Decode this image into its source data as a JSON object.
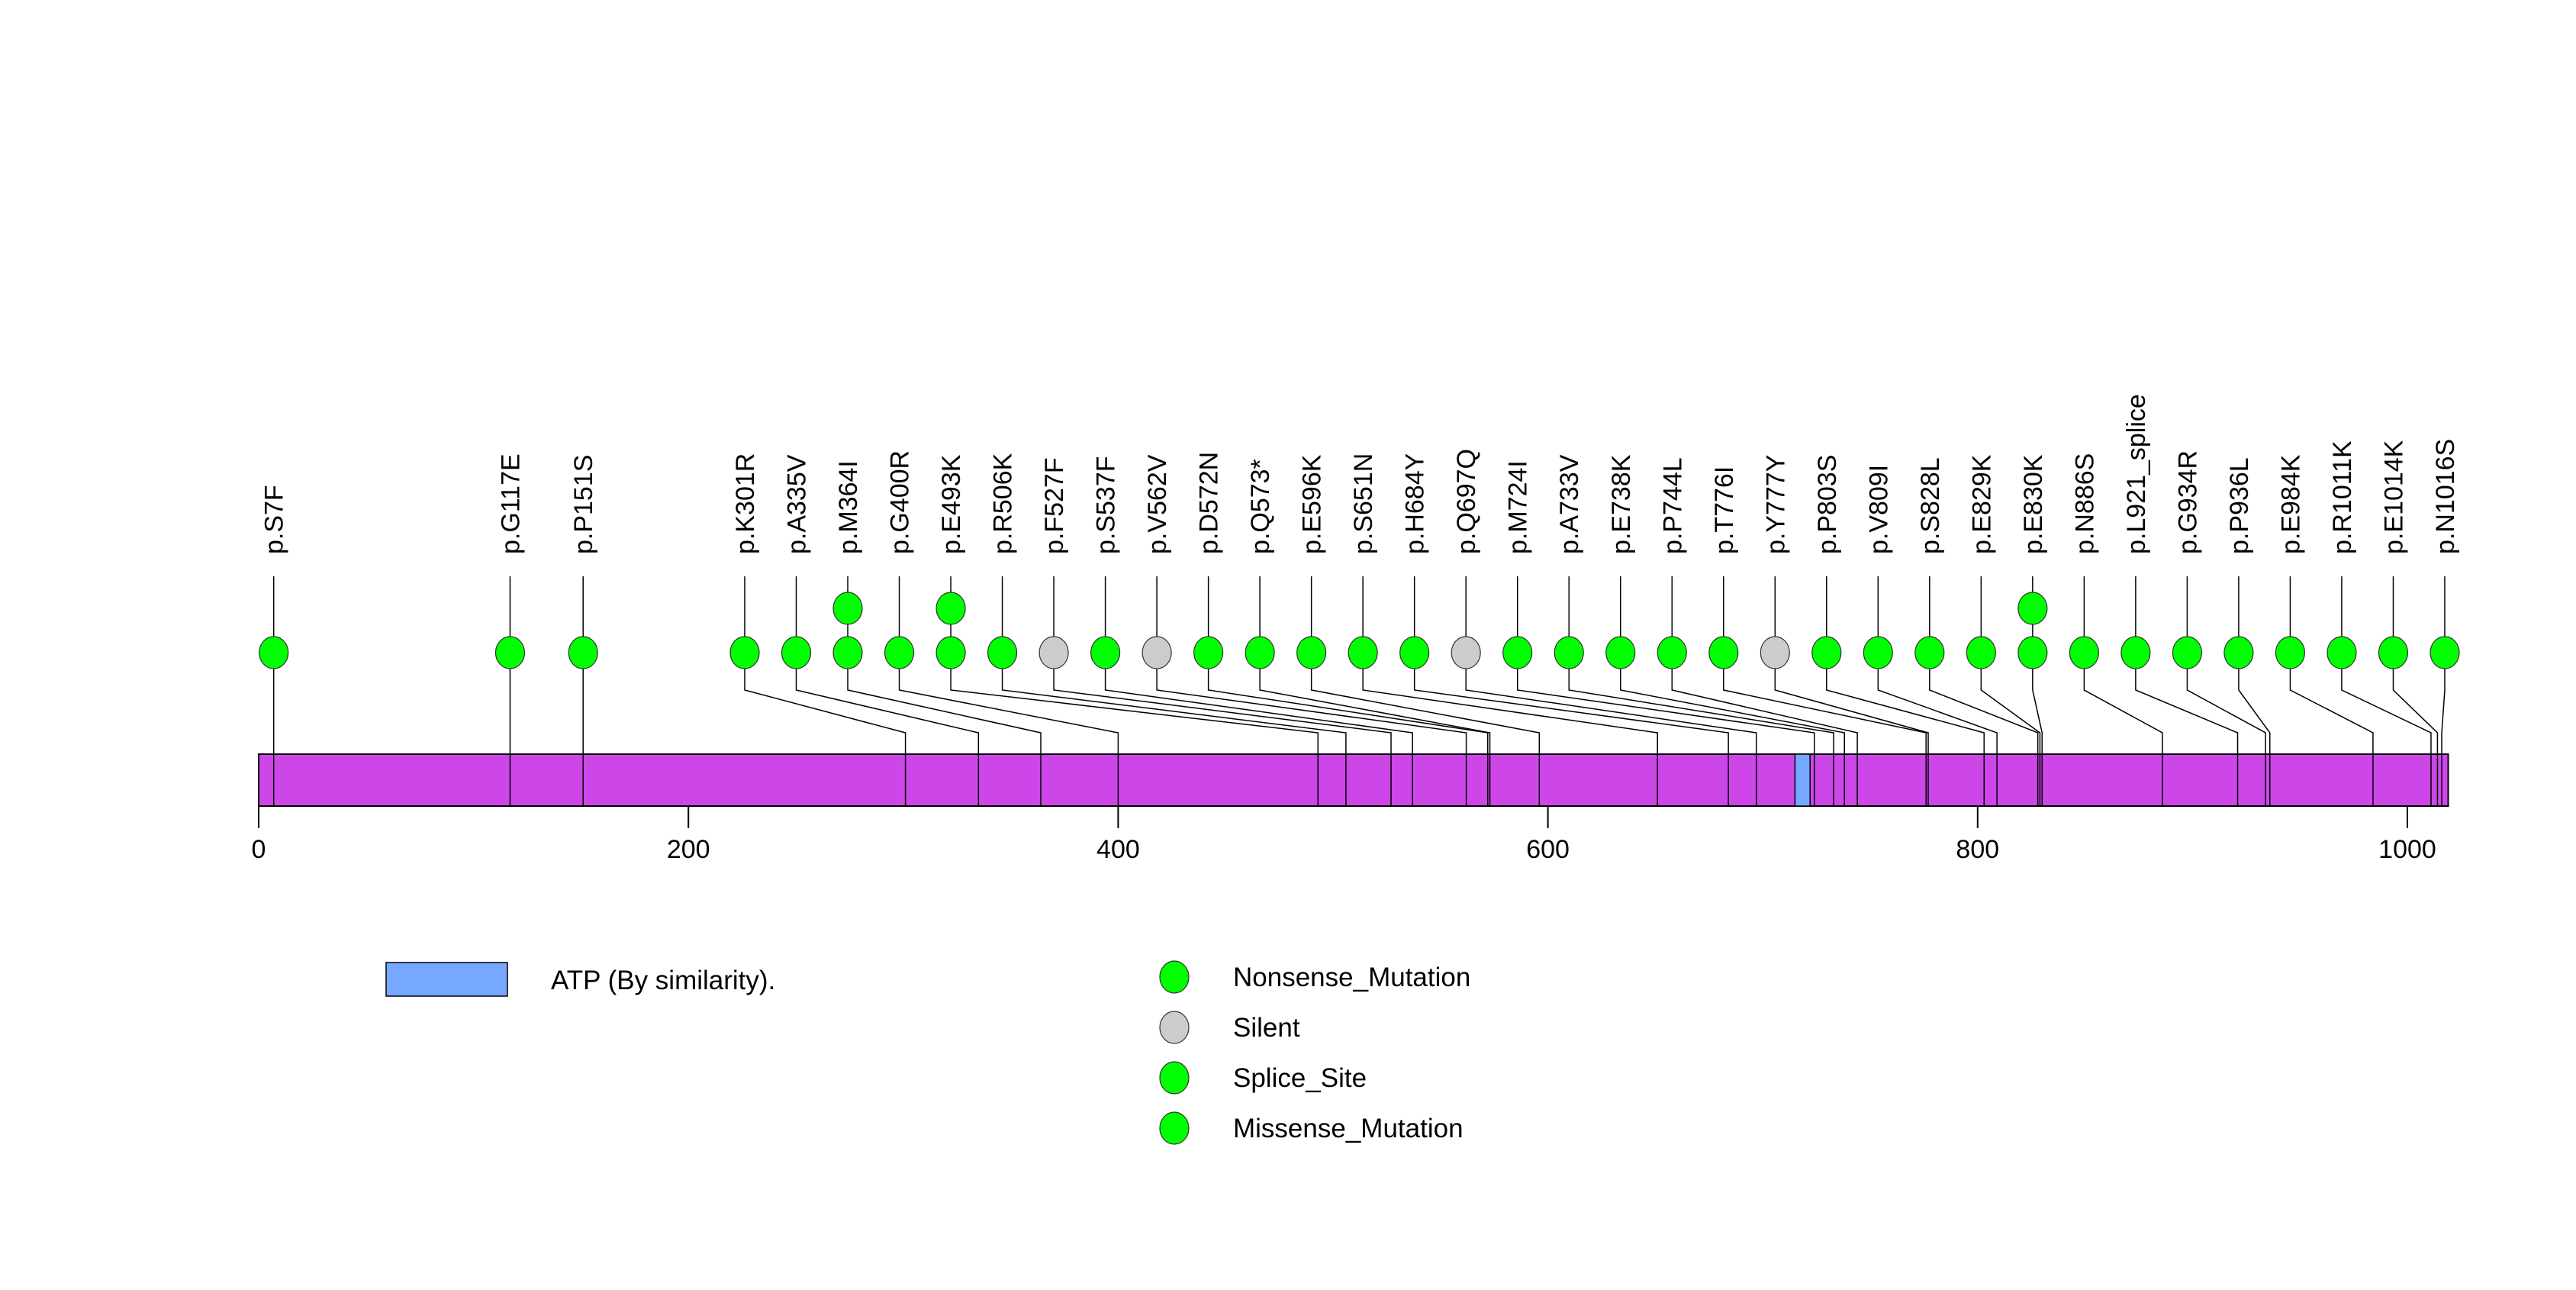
{
  "chart_data": {
    "type": "lollipop",
    "title": "",
    "xlabel": "",
    "ylabel": "",
    "protein_length": 1019,
    "xlim": [
      0,
      1019
    ],
    "x_ticks": [
      0,
      200,
      400,
      600,
      800,
      1000
    ],
    "x_tick_labels": [
      "0",
      "200",
      "400",
      "600",
      "800",
      "1000"
    ],
    "grid": false,
    "colors": {
      "protein_bar": "#CC46E8",
      "domain_atp": "#77A8FF",
      "Nonsense_Mutation": "#00FF00",
      "Silent": "#CCCCCC",
      "Splice_Site": "#00FF00",
      "Missense_Mutation": "#00FF00"
    },
    "domains": [
      {
        "name": "ATP (By similarity).",
        "start": 715,
        "end": 722
      }
    ],
    "mutations": [
      {
        "label": "p.S7F",
        "position": 7,
        "type": "Missense_Mutation",
        "count": 1
      },
      {
        "label": "p.G117E",
        "position": 117,
        "type": "Missense_Mutation",
        "count": 1
      },
      {
        "label": "p.P151S",
        "position": 151,
        "type": "Missense_Mutation",
        "count": 1
      },
      {
        "label": "p.K301R",
        "position": 301,
        "type": "Missense_Mutation",
        "count": 1
      },
      {
        "label": "p.A335V",
        "position": 335,
        "type": "Missense_Mutation",
        "count": 1
      },
      {
        "label": "p.M364I",
        "position": 364,
        "type": "Missense_Mutation",
        "count": 2
      },
      {
        "label": "p.G400R",
        "position": 400,
        "type": "Missense_Mutation",
        "count": 1
      },
      {
        "label": "p.E493K",
        "position": 493,
        "type": "Missense_Mutation",
        "count": 2
      },
      {
        "label": "p.R506K",
        "position": 506,
        "type": "Missense_Mutation",
        "count": 1
      },
      {
        "label": "p.F527F",
        "position": 527,
        "type": "Silent",
        "count": 1
      },
      {
        "label": "p.S537F",
        "position": 537,
        "type": "Missense_Mutation",
        "count": 1
      },
      {
        "label": "p.V562V",
        "position": 562,
        "type": "Silent",
        "count": 1
      },
      {
        "label": "p.D572N",
        "position": 572,
        "type": "Missense_Mutation",
        "count": 1
      },
      {
        "label": "p.Q573*",
        "position": 573,
        "type": "Nonsense_Mutation",
        "count": 1
      },
      {
        "label": "p.E596K",
        "position": 596,
        "type": "Missense_Mutation",
        "count": 1
      },
      {
        "label": "p.S651N",
        "position": 651,
        "type": "Missense_Mutation",
        "count": 1
      },
      {
        "label": "p.H684Y",
        "position": 684,
        "type": "Missense_Mutation",
        "count": 1
      },
      {
        "label": "p.Q697Q",
        "position": 697,
        "type": "Silent",
        "count": 1
      },
      {
        "label": "p.M724I",
        "position": 724,
        "type": "Missense_Mutation",
        "count": 1
      },
      {
        "label": "p.A733V",
        "position": 733,
        "type": "Missense_Mutation",
        "count": 1
      },
      {
        "label": "p.E738K",
        "position": 738,
        "type": "Missense_Mutation",
        "count": 1
      },
      {
        "label": "p.P744L",
        "position": 744,
        "type": "Missense_Mutation",
        "count": 1
      },
      {
        "label": "p.T776I",
        "position": 776,
        "type": "Missense_Mutation",
        "count": 1
      },
      {
        "label": "p.Y777Y",
        "position": 777,
        "type": "Silent",
        "count": 1
      },
      {
        "label": "p.P803S",
        "position": 803,
        "type": "Missense_Mutation",
        "count": 1
      },
      {
        "label": "p.V809I",
        "position": 809,
        "type": "Missense_Mutation",
        "count": 1
      },
      {
        "label": "p.S828L",
        "position": 828,
        "type": "Missense_Mutation",
        "count": 1
      },
      {
        "label": "p.E829K",
        "position": 829,
        "type": "Missense_Mutation",
        "count": 1
      },
      {
        "label": "p.E830K",
        "position": 830,
        "type": "Missense_Mutation",
        "count": 2
      },
      {
        "label": "p.N886S",
        "position": 886,
        "type": "Missense_Mutation",
        "count": 1
      },
      {
        "label": "p.L921_splice",
        "position": 921,
        "type": "Splice_Site",
        "count": 1
      },
      {
        "label": "p.G934R",
        "position": 934,
        "type": "Missense_Mutation",
        "count": 1
      },
      {
        "label": "p.P936L",
        "position": 936,
        "type": "Missense_Mutation",
        "count": 1
      },
      {
        "label": "p.E984K",
        "position": 984,
        "type": "Missense_Mutation",
        "count": 1
      },
      {
        "label": "p.R1011K",
        "position": 1011,
        "type": "Missense_Mutation",
        "count": 1
      },
      {
        "label": "p.E1014K",
        "position": 1014,
        "type": "Missense_Mutation",
        "count": 1
      },
      {
        "label": "p.N1016S",
        "position": 1016,
        "type": "Missense_Mutation",
        "count": 1
      }
    ],
    "legend": {
      "placement": "bottom",
      "domains": [
        {
          "label": "ATP (By similarity).",
          "color": "#77A8FF"
        }
      ],
      "mutation_types": [
        {
          "label": "Nonsense_Mutation",
          "color": "#00FF00"
        },
        {
          "label": "Silent",
          "color": "#CCCCCC"
        },
        {
          "label": "Splice_Site",
          "color": "#00FF00"
        },
        {
          "label": "Missense_Mutation",
          "color": "#00FF00"
        }
      ]
    }
  }
}
